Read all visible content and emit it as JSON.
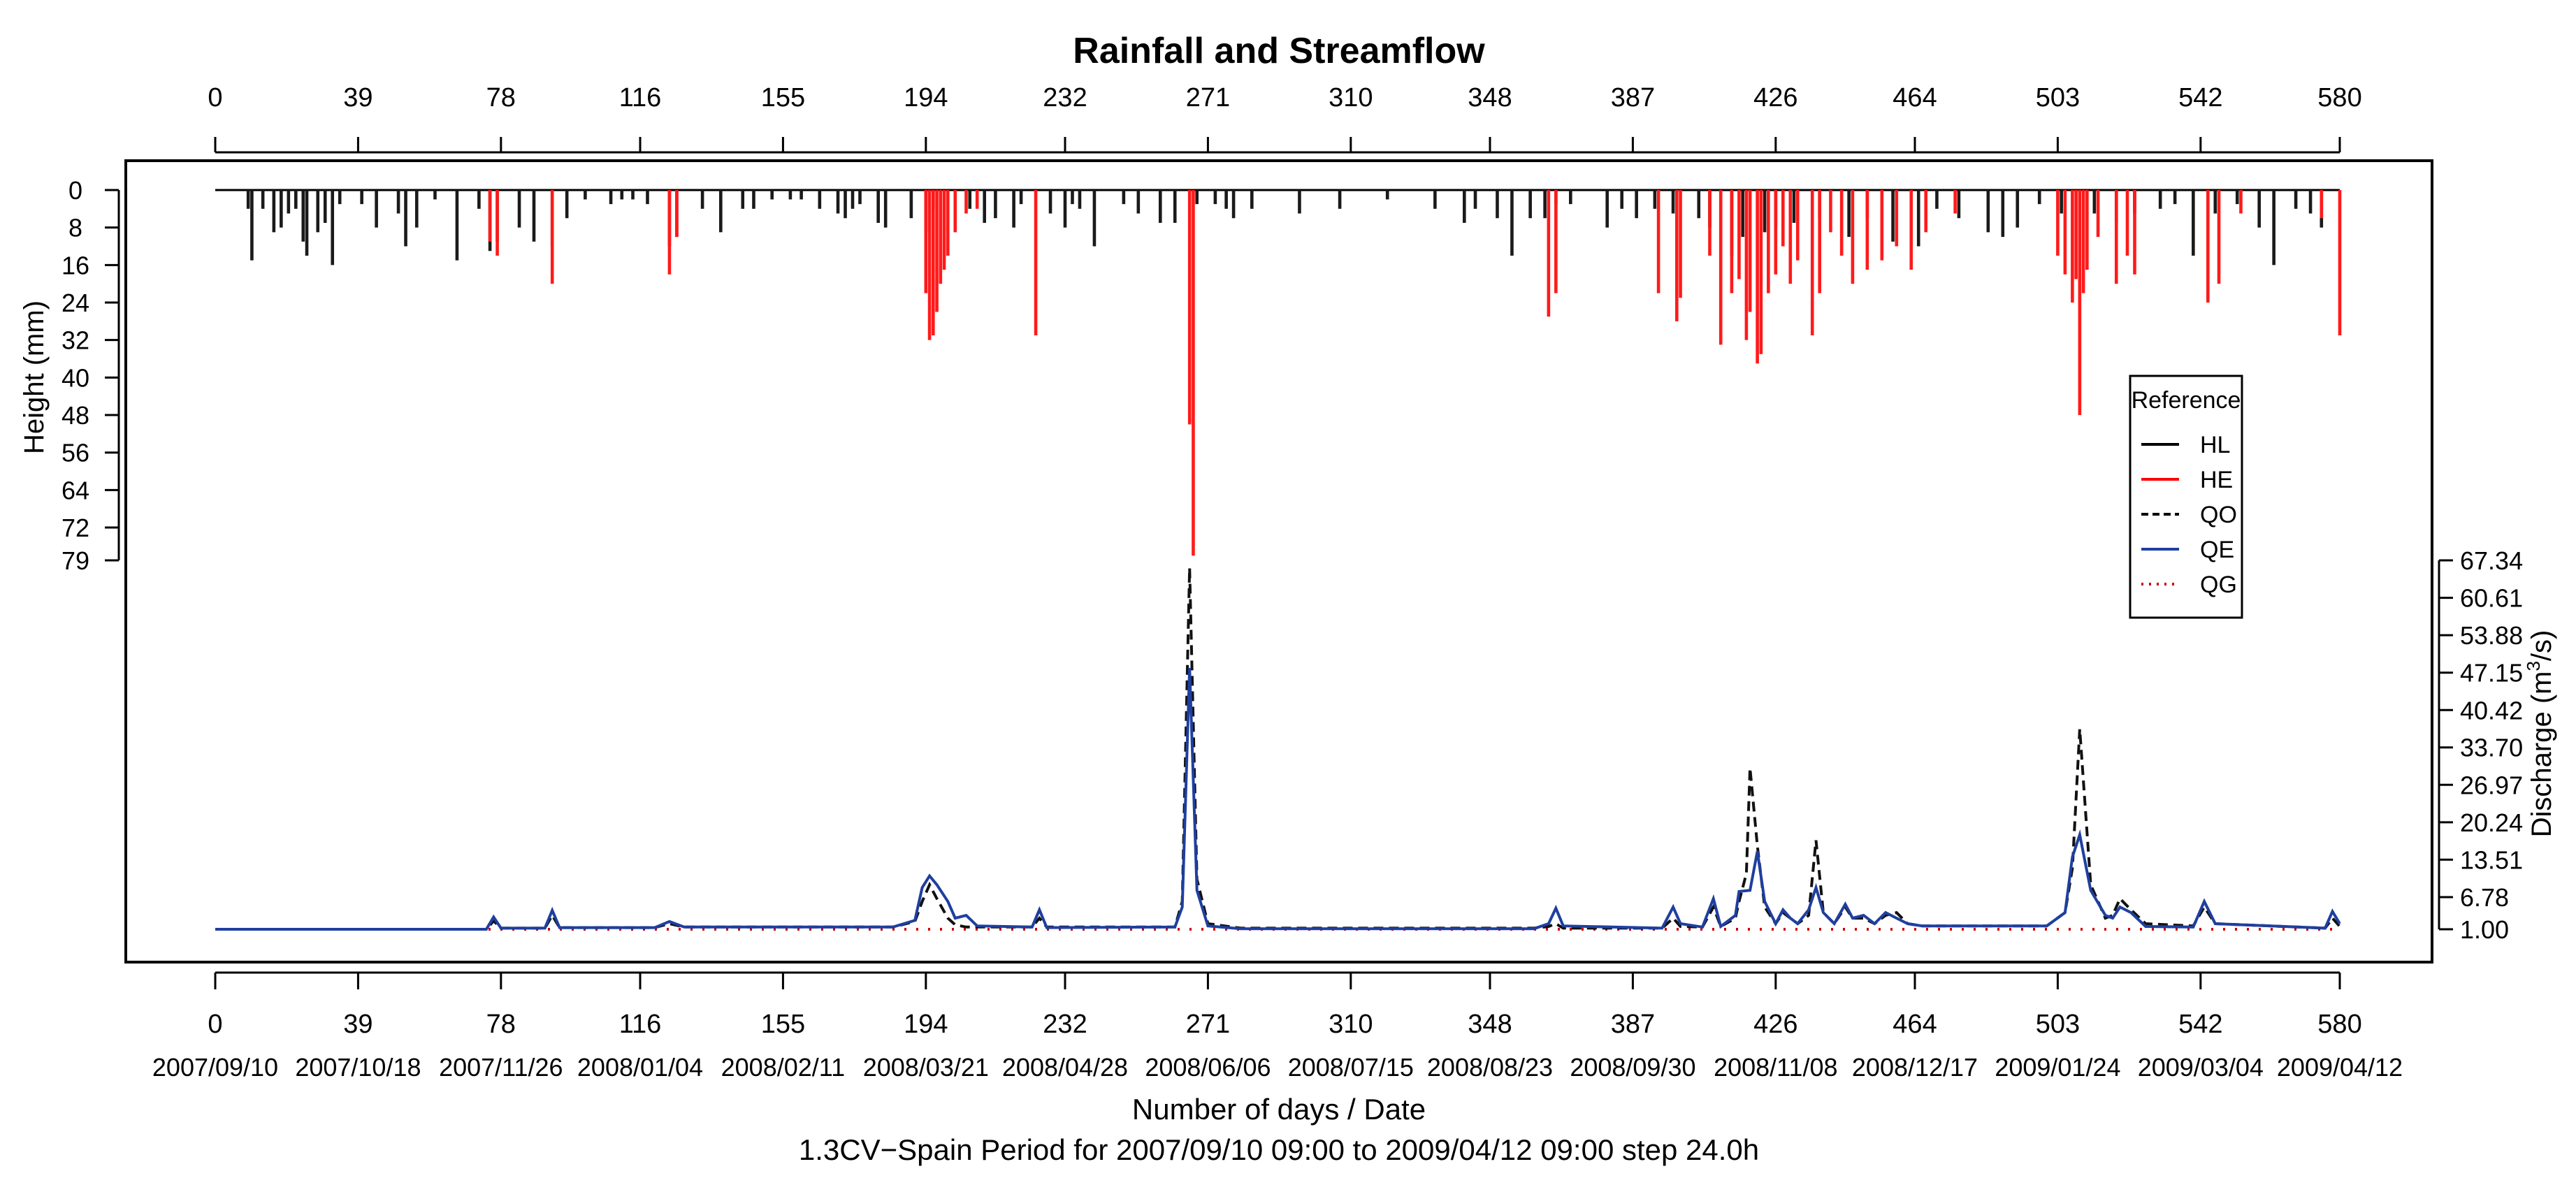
{
  "chart_data": {
    "type": "bar+line",
    "title": "Rainfall and Streamflow",
    "ylabel_left": "Height (mm)",
    "ylabel_right": "Discharge (m",
    "ylabel_right_sup": "3",
    "ylabel_right_tail": "/s)",
    "xlabel": "Number of days / Date",
    "caption": "1.3CV−Spain Period for 2007/09/10 09:00 to 2009/04/12 09:00 step 24.0h",
    "xlim": [
      0,
      580
    ],
    "x_ticks": [
      0,
      39,
      78,
      116,
      155,
      194,
      232,
      271,
      310,
      348,
      387,
      426,
      464,
      503,
      542,
      580
    ],
    "x_tick_labels": [
      "0",
      "39",
      "78",
      "116",
      "155",
      "194",
      "232",
      "271",
      "310",
      "348",
      "387",
      "426",
      "464",
      "503",
      "542",
      "580"
    ],
    "date_labels": [
      "2007/09/10",
      "2007/10/18",
      "2007/11/26",
      "2008/01/04",
      "2008/02/11",
      "2008/03/21",
      "2008/04/28",
      "2008/06/06",
      "2008/07/15",
      "2008/08/23",
      "2008/09/30",
      "2008/11/08",
      "2008/12/17",
      "2009/01/24",
      "2009/03/04",
      "2009/04/12"
    ],
    "rain_ylim": [
      0,
      79
    ],
    "rain_ticks": [
      0,
      8,
      16,
      24,
      32,
      40,
      48,
      56,
      64,
      72,
      79
    ],
    "rain_tick_labels": [
      "0",
      "8",
      "16",
      "24",
      "32",
      "40",
      "48",
      "56",
      "64",
      "72",
      "79"
    ],
    "q_ylim": [
      1.0,
      67.34
    ],
    "q_ticks": [
      1.0,
      6.78,
      13.51,
      20.24,
      26.97,
      33.7,
      40.42,
      47.15,
      53.88,
      60.61,
      67.34
    ],
    "q_tick_labels": [
      "1.00",
      "6.78",
      "13.51",
      "20.24",
      "26.97",
      "33.70",
      "40.42",
      "47.15",
      "53.88",
      "60.61",
      "67.34"
    ],
    "legend": {
      "title": "Reference",
      "entries": [
        {
          "name": "HL",
          "color": "#000000",
          "style": "solid"
        },
        {
          "name": "HE",
          "color": "#ff0000",
          "style": "solid"
        },
        {
          "name": "QO",
          "color": "#000000",
          "style": "dashed"
        },
        {
          "name": "QE",
          "color": "#1f3f9f",
          "style": "solid"
        },
        {
          "name": "QG",
          "color": "#cc0000",
          "style": "dotted"
        }
      ]
    },
    "rain_HL": [
      [
        9,
        4
      ],
      [
        10,
        15
      ],
      [
        13,
        4
      ],
      [
        16,
        9
      ],
      [
        18,
        8
      ],
      [
        20,
        5
      ],
      [
        22,
        4
      ],
      [
        24,
        11
      ],
      [
        25,
        14
      ],
      [
        28,
        9
      ],
      [
        30,
        7
      ],
      [
        32,
        16
      ],
      [
        34,
        3
      ],
      [
        40,
        3
      ],
      [
        44,
        8
      ],
      [
        50,
        5
      ],
      [
        52,
        12
      ],
      [
        55,
        8
      ],
      [
        60,
        2
      ],
      [
        66,
        15
      ],
      [
        72,
        4
      ],
      [
        75,
        13
      ],
      [
        77,
        11
      ],
      [
        83,
        8
      ],
      [
        87,
        11
      ],
      [
        92,
        12
      ],
      [
        96,
        6
      ],
      [
        101,
        2
      ],
      [
        108,
        3
      ],
      [
        111,
        2
      ],
      [
        114,
        2
      ],
      [
        118,
        3
      ],
      [
        124,
        12
      ],
      [
        126,
        10
      ],
      [
        133,
        4
      ],
      [
        138,
        9
      ],
      [
        144,
        4
      ],
      [
        147,
        4
      ],
      [
        152,
        2
      ],
      [
        157,
        2
      ],
      [
        160,
        2
      ],
      [
        165,
        4
      ],
      [
        170,
        5
      ],
      [
        172,
        6
      ],
      [
        174,
        4
      ],
      [
        176,
        3
      ],
      [
        181,
        7
      ],
      [
        183,
        8
      ],
      [
        190,
        6
      ],
      [
        194,
        9
      ],
      [
        196,
        4
      ],
      [
        206,
        4
      ],
      [
        210,
        7
      ],
      [
        213,
        6
      ],
      [
        218,
        8
      ],
      [
        220,
        3
      ],
      [
        228,
        5
      ],
      [
        232,
        8
      ],
      [
        234,
        3
      ],
      [
        236,
        4
      ],
      [
        240,
        12
      ],
      [
        248,
        3
      ],
      [
        252,
        5
      ],
      [
        258,
        7
      ],
      [
        262,
        7
      ],
      [
        268,
        3
      ],
      [
        273,
        3
      ],
      [
        276,
        4
      ],
      [
        278,
        6
      ],
      [
        283,
        4
      ],
      [
        296,
        5
      ],
      [
        307,
        4
      ],
      [
        320,
        2
      ],
      [
        333,
        4
      ],
      [
        341,
        7
      ],
      [
        344,
        4
      ],
      [
        350,
        6
      ],
      [
        354,
        14
      ],
      [
        359,
        6
      ],
      [
        363,
        6
      ],
      [
        366,
        3
      ],
      [
        370,
        3
      ],
      [
        380,
        8
      ],
      [
        384,
        4
      ],
      [
        388,
        6
      ],
      [
        393,
        4
      ],
      [
        398,
        5
      ],
      [
        405,
        6
      ],
      [
        408,
        8
      ],
      [
        414,
        14
      ],
      [
        417,
        10
      ],
      [
        423,
        9
      ],
      [
        426,
        8
      ],
      [
        431,
        7
      ],
      [
        438,
        6
      ],
      [
        446,
        10
      ],
      [
        451,
        6
      ],
      [
        458,
        11
      ],
      [
        465,
        12
      ],
      [
        470,
        4
      ],
      [
        476,
        6
      ],
      [
        484,
        9
      ],
      [
        488,
        10
      ],
      [
        492,
        8
      ],
      [
        498,
        3
      ],
      [
        504,
        5
      ],
      [
        513,
        5
      ],
      [
        519,
        7
      ],
      [
        524,
        5
      ],
      [
        531,
        4
      ],
      [
        535,
        3
      ],
      [
        540,
        14
      ],
      [
        546,
        5
      ],
      [
        552,
        3
      ],
      [
        558,
        8
      ],
      [
        562,
        16
      ],
      [
        568,
        4
      ],
      [
        572,
        5
      ],
      [
        575,
        8
      ]
    ],
    "rain_HE": [
      [
        75,
        11
      ],
      [
        77,
        14
      ],
      [
        92,
        20
      ],
      [
        124,
        18
      ],
      [
        126,
        10
      ],
      [
        194,
        22
      ],
      [
        195,
        32
      ],
      [
        196,
        31
      ],
      [
        197,
        26
      ],
      [
        198,
        20
      ],
      [
        199,
        17
      ],
      [
        200,
        14
      ],
      [
        202,
        9
      ],
      [
        205,
        5
      ],
      [
        208,
        4
      ],
      [
        224,
        31
      ],
      [
        266,
        50
      ],
      [
        267,
        78
      ],
      [
        364,
        27
      ],
      [
        366,
        22
      ],
      [
        394,
        22
      ],
      [
        399,
        28
      ],
      [
        400,
        23
      ],
      [
        408,
        14
      ],
      [
        411,
        33
      ],
      [
        414,
        22
      ],
      [
        416,
        19
      ],
      [
        418,
        32
      ],
      [
        419,
        26
      ],
      [
        421,
        37
      ],
      [
        422,
        35
      ],
      [
        424,
        22
      ],
      [
        426,
        18
      ],
      [
        428,
        12
      ],
      [
        430,
        20
      ],
      [
        432,
        15
      ],
      [
        436,
        31
      ],
      [
        438,
        22
      ],
      [
        441,
        9
      ],
      [
        444,
        14
      ],
      [
        447,
        20
      ],
      [
        451,
        17
      ],
      [
        455,
        15
      ],
      [
        459,
        12
      ],
      [
        463,
        17
      ],
      [
        467,
        9
      ],
      [
        475,
        5
      ],
      [
        503,
        14
      ],
      [
        505,
        18
      ],
      [
        507,
        24
      ],
      [
        508,
        19
      ],
      [
        509,
        48
      ],
      [
        510,
        22
      ],
      [
        511,
        17
      ],
      [
        514,
        10
      ],
      [
        519,
        20
      ],
      [
        522,
        14
      ],
      [
        524,
        18
      ],
      [
        544,
        24
      ],
      [
        547,
        20
      ],
      [
        553,
        5
      ],
      [
        575,
        6
      ],
      [
        580,
        31
      ]
    ],
    "flow_QE": [
      [
        0,
        1.0
      ],
      [
        40,
        1.0
      ],
      [
        74,
        1.0
      ],
      [
        76,
        3.2
      ],
      [
        78,
        1.2
      ],
      [
        90,
        1.2
      ],
      [
        92,
        4.4
      ],
      [
        94,
        1.3
      ],
      [
        120,
        1.3
      ],
      [
        124,
        2.4
      ],
      [
        128,
        1.4
      ],
      [
        185,
        1.4
      ],
      [
        191,
        2.6
      ],
      [
        193,
        8.5
      ],
      [
        195,
        10.6
      ],
      [
        197,
        9.0
      ],
      [
        200,
        6.0
      ],
      [
        202,
        3.0
      ],
      [
        205,
        3.5
      ],
      [
        208,
        1.6
      ],
      [
        223,
        1.4
      ],
      [
        225,
        4.5
      ],
      [
        227,
        1.3
      ],
      [
        262,
        1.4
      ],
      [
        264,
        5.0
      ],
      [
        266,
        48.0
      ],
      [
        268,
        8.0
      ],
      [
        271,
        1.6
      ],
      [
        280,
        1.1
      ],
      [
        360,
        1.1
      ],
      [
        364,
        2.0
      ],
      [
        366,
        4.8
      ],
      [
        368,
        1.6
      ],
      [
        395,
        1.2
      ],
      [
        398,
        5.0
      ],
      [
        400,
        2.0
      ],
      [
        406,
        1.4
      ],
      [
        409,
        6.5
      ],
      [
        411,
        1.5
      ],
      [
        415,
        3.5
      ],
      [
        416,
        7.8
      ],
      [
        419,
        8.0
      ],
      [
        421,
        15.0
      ],
      [
        423,
        6.0
      ],
      [
        426,
        2.0
      ],
      [
        428,
        4.5
      ],
      [
        430,
        3.0
      ],
      [
        432,
        2.0
      ],
      [
        435,
        4.5
      ],
      [
        437,
        8.5
      ],
      [
        439,
        4.0
      ],
      [
        442,
        2.0
      ],
      [
        445,
        5.5
      ],
      [
        447,
        3.0
      ],
      [
        450,
        3.5
      ],
      [
        453,
        2.0
      ],
      [
        456,
        4.0
      ],
      [
        459,
        3.0
      ],
      [
        462,
        2.0
      ],
      [
        466,
        1.6
      ],
      [
        500,
        1.6
      ],
      [
        505,
        4.0
      ],
      [
        507,
        14.0
      ],
      [
        509,
        18.0
      ],
      [
        512,
        8.0
      ],
      [
        516,
        3.5
      ],
      [
        518,
        3.0
      ],
      [
        520,
        5.0
      ],
      [
        523,
        4.0
      ],
      [
        527,
        1.5
      ],
      [
        540,
        1.4
      ],
      [
        543,
        6.0
      ],
      [
        546,
        2.0
      ],
      [
        576,
        1.2
      ],
      [
        578,
        4.2
      ],
      [
        580,
        2.0
      ]
    ],
    "flow_QO": [
      [
        0,
        1.0
      ],
      [
        40,
        1.0
      ],
      [
        74,
        1.0
      ],
      [
        76,
        2.5
      ],
      [
        78,
        1.2
      ],
      [
        90,
        1.2
      ],
      [
        92,
        3.5
      ],
      [
        94,
        1.3
      ],
      [
        120,
        1.3
      ],
      [
        124,
        2.0
      ],
      [
        128,
        1.4
      ],
      [
        185,
        1.4
      ],
      [
        191,
        2.4
      ],
      [
        193,
        6.0
      ],
      [
        195,
        9.0
      ],
      [
        197,
        6.5
      ],
      [
        200,
        3.0
      ],
      [
        202,
        1.8
      ],
      [
        205,
        1.4
      ],
      [
        208,
        1.4
      ],
      [
        223,
        1.4
      ],
      [
        225,
        3.0
      ],
      [
        227,
        1.4
      ],
      [
        262,
        1.4
      ],
      [
        264,
        6.0
      ],
      [
        266,
        66.0
      ],
      [
        268,
        10.0
      ],
      [
        271,
        2.0
      ],
      [
        280,
        1.2
      ],
      [
        360,
        1.2
      ],
      [
        364,
        1.5
      ],
      [
        366,
        2.0
      ],
      [
        368,
        1.2
      ],
      [
        395,
        1.2
      ],
      [
        398,
        3.0
      ],
      [
        400,
        1.5
      ],
      [
        406,
        1.4
      ],
      [
        409,
        5.0
      ],
      [
        411,
        1.5
      ],
      [
        415,
        3.0
      ],
      [
        416,
        6.0
      ],
      [
        418,
        11.0
      ],
      [
        419,
        30.0
      ],
      [
        421,
        16.0
      ],
      [
        423,
        5.0
      ],
      [
        426,
        2.0
      ],
      [
        428,
        4.0
      ],
      [
        430,
        3.0
      ],
      [
        432,
        2.0
      ],
      [
        435,
        3.5
      ],
      [
        437,
        17.0
      ],
      [
        439,
        4.0
      ],
      [
        442,
        2.0
      ],
      [
        445,
        5.0
      ],
      [
        447,
        3.0
      ],
      [
        450,
        3.0
      ],
      [
        453,
        2.0
      ],
      [
        456,
        3.5
      ],
      [
        459,
        4.0
      ],
      [
        462,
        2.0
      ],
      [
        466,
        1.6
      ],
      [
        500,
        1.6
      ],
      [
        505,
        4.0
      ],
      [
        507,
        12.0
      ],
      [
        509,
        37.0
      ],
      [
        512,
        9.0
      ],
      [
        516,
        3.0
      ],
      [
        518,
        3.5
      ],
      [
        520,
        6.5
      ],
      [
        523,
        4.5
      ],
      [
        527,
        2.0
      ],
      [
        540,
        1.6
      ],
      [
        543,
        5.0
      ],
      [
        546,
        2.0
      ],
      [
        576,
        1.2
      ],
      [
        578,
        3.0
      ],
      [
        580,
        1.5
      ]
    ]
  }
}
